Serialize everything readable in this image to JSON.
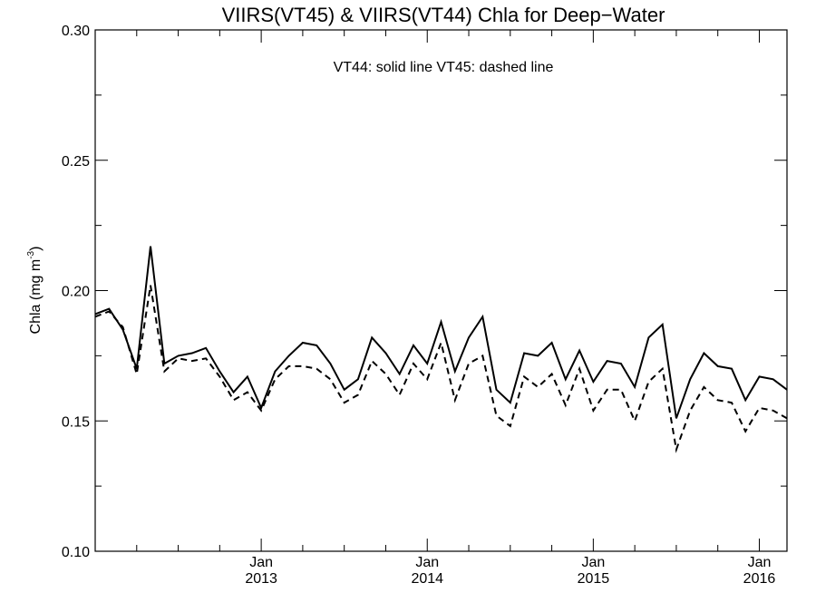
{
  "chart_data": {
    "type": "line",
    "title": "VIIRS(VT45) & VIIRS(VT44)  Chla for Deep−Water",
    "annotation": "VT44: solid line   VT45: dashed line",
    "ylabel": "Chla (mg m",
    "ylabel_sup": "-3",
    "ylabel_close": ")",
    "xlabel": "",
    "xlim": [
      "2012-01-01",
      "2016-03-01"
    ],
    "ylim": [
      0.1,
      0.3
    ],
    "grid": false,
    "y_ticks": [
      {
        "value": 0.1,
        "label": "0.10"
      },
      {
        "value": 0.15,
        "label": "0.15"
      },
      {
        "value": 0.2,
        "label": "0.20"
      },
      {
        "value": 0.25,
        "label": "0.25"
      },
      {
        "value": 0.3,
        "label": "0.30"
      }
    ],
    "x_ticks": [
      {
        "date": "2013-01-01",
        "month": "Jan",
        "year": "2013"
      },
      {
        "date": "2014-01-01",
        "month": "Jan",
        "year": "2014"
      },
      {
        "date": "2015-01-01",
        "month": "Jan",
        "year": "2015"
      },
      {
        "date": "2016-01-01",
        "month": "Jan",
        "year": "2016"
      }
    ],
    "x": [
      "2012-01",
      "2012-02",
      "2012-03",
      "2012-04",
      "2012-05",
      "2012-06",
      "2012-07",
      "2012-08",
      "2012-09",
      "2012-10",
      "2012-11",
      "2012-12",
      "2013-01",
      "2013-02",
      "2013-03",
      "2013-04",
      "2013-05",
      "2013-06",
      "2013-07",
      "2013-08",
      "2013-09",
      "2013-10",
      "2013-11",
      "2013-12",
      "2014-01",
      "2014-02",
      "2014-03",
      "2014-04",
      "2014-05",
      "2014-06",
      "2014-07",
      "2014-08",
      "2014-09",
      "2014-10",
      "2014-11",
      "2014-12",
      "2015-01",
      "2015-02",
      "2015-03",
      "2015-04",
      "2015-05",
      "2015-06",
      "2015-07",
      "2015-08",
      "2015-09",
      "2015-10",
      "2015-11",
      "2015-12",
      "2016-01",
      "2016-02",
      "2016-03"
    ],
    "series": [
      {
        "style": "solid",
        "values": [
          0.191,
          0.193,
          0.185,
          0.17,
          0.217,
          0.172,
          0.175,
          0.176,
          0.178,
          0.169,
          0.161,
          0.167,
          0.155,
          0.169,
          0.175,
          0.18,
          0.179,
          0.172,
          0.162,
          0.166,
          0.182,
          0.176,
          0.168,
          0.179,
          0.172,
          0.188,
          0.169,
          0.182,
          0.19,
          0.162,
          0.157,
          0.176,
          0.175,
          0.18,
          0.166,
          0.177,
          0.165,
          0.173,
          0.172,
          0.163,
          0.182,
          0.187,
          0.151,
          0.166,
          0.176,
          0.171,
          0.17,
          0.158,
          0.167,
          0.166,
          0.162
        ]
      },
      {
        "style": "dashed",
        "values": [
          0.19,
          0.192,
          0.186,
          0.168,
          0.202,
          0.169,
          0.174,
          0.173,
          0.174,
          0.167,
          0.158,
          0.161,
          0.154,
          0.166,
          0.171,
          0.171,
          0.17,
          0.166,
          0.157,
          0.16,
          0.173,
          0.168,
          0.16,
          0.172,
          0.166,
          0.18,
          0.158,
          0.172,
          0.175,
          0.152,
          0.148,
          0.167,
          0.163,
          0.168,
          0.156,
          0.17,
          0.154,
          0.162,
          0.162,
          0.15,
          0.165,
          0.17,
          0.139,
          0.154,
          0.163,
          0.158,
          0.157,
          0.146,
          0.155,
          0.154,
          0.151
        ]
      }
    ]
  }
}
